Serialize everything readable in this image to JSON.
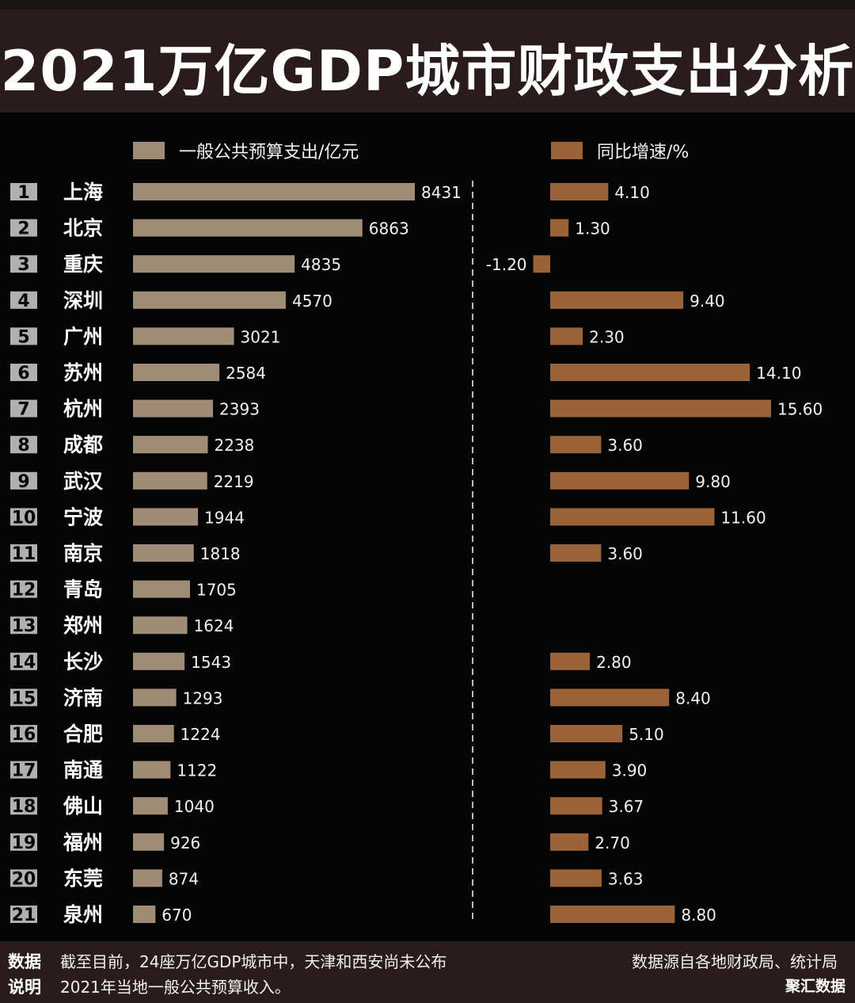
{
  "title": "2021万亿GDP城市财政支出分析",
  "legend": {
    "spend": "一般公共预算支出/亿元",
    "growth": "同比增速/%"
  },
  "colors": {
    "spend_bar": "#a08c76",
    "growth_bar": "#9a6237",
    "header_bg": "#2a1c1c",
    "background": "#050505",
    "rank_badge": "#b0b0b0",
    "divider": "#bbbbbb"
  },
  "chart_data": {
    "type": "bar",
    "categories": [
      "上海",
      "北京",
      "重庆",
      "深圳",
      "广州",
      "苏州",
      "杭州",
      "成都",
      "武汉",
      "宁波",
      "南京",
      "青岛",
      "郑州",
      "长沙",
      "济南",
      "合肥",
      "南通",
      "佛山",
      "福州",
      "东莞",
      "泉州"
    ],
    "ranks": [
      "1",
      "2",
      "3",
      "4",
      "5",
      "6",
      "7",
      "8",
      "9",
      "10",
      "11",
      "12",
      "13",
      "14",
      "15",
      "16",
      "17",
      "18",
      "19",
      "20",
      "21"
    ],
    "series": [
      {
        "name": "一般公共预算支出/亿元",
        "values": [
          8431,
          6863,
          4835,
          4570,
          3021,
          2584,
          2393,
          2238,
          2219,
          1944,
          1818,
          1705,
          1624,
          1543,
          1293,
          1224,
          1122,
          1040,
          926,
          874,
          670
        ],
        "labels": [
          "8431",
          "6863",
          "4835",
          "4570",
          "3021",
          "2584",
          "2393",
          "2238",
          "2219",
          "1944",
          "1818",
          "1705",
          "1624",
          "1543",
          "1293",
          "1224",
          "1122",
          "1040",
          "926",
          "874",
          "670"
        ]
      },
      {
        "name": "同比增速/%",
        "values": [
          4.1,
          1.3,
          -1.2,
          9.4,
          2.3,
          14.1,
          15.6,
          3.6,
          9.8,
          11.6,
          3.6,
          null,
          null,
          2.8,
          8.4,
          5.1,
          3.9,
          3.67,
          2.7,
          3.63,
          8.8
        ],
        "labels": [
          "4.10",
          "1.30",
          "-1.20",
          "9.40",
          "2.30",
          "14.10",
          "15.60",
          "3.60",
          "9.80",
          "11.60",
          "3.60",
          "",
          "",
          "2.80",
          "8.40",
          "5.10",
          "3.90",
          "3.67",
          "2.70",
          "3.63",
          "8.80"
        ]
      }
    ]
  },
  "footer": {
    "label_line1": "数据",
    "label_line2": "说明",
    "note_line1": "截至目前，24座万亿GDP城市中，天津和西安尚未公布",
    "note_line2": "2021年当地一般公共预算收入。",
    "source": "数据源自各地财政局、统计局",
    "brand": "聚汇数据"
  }
}
